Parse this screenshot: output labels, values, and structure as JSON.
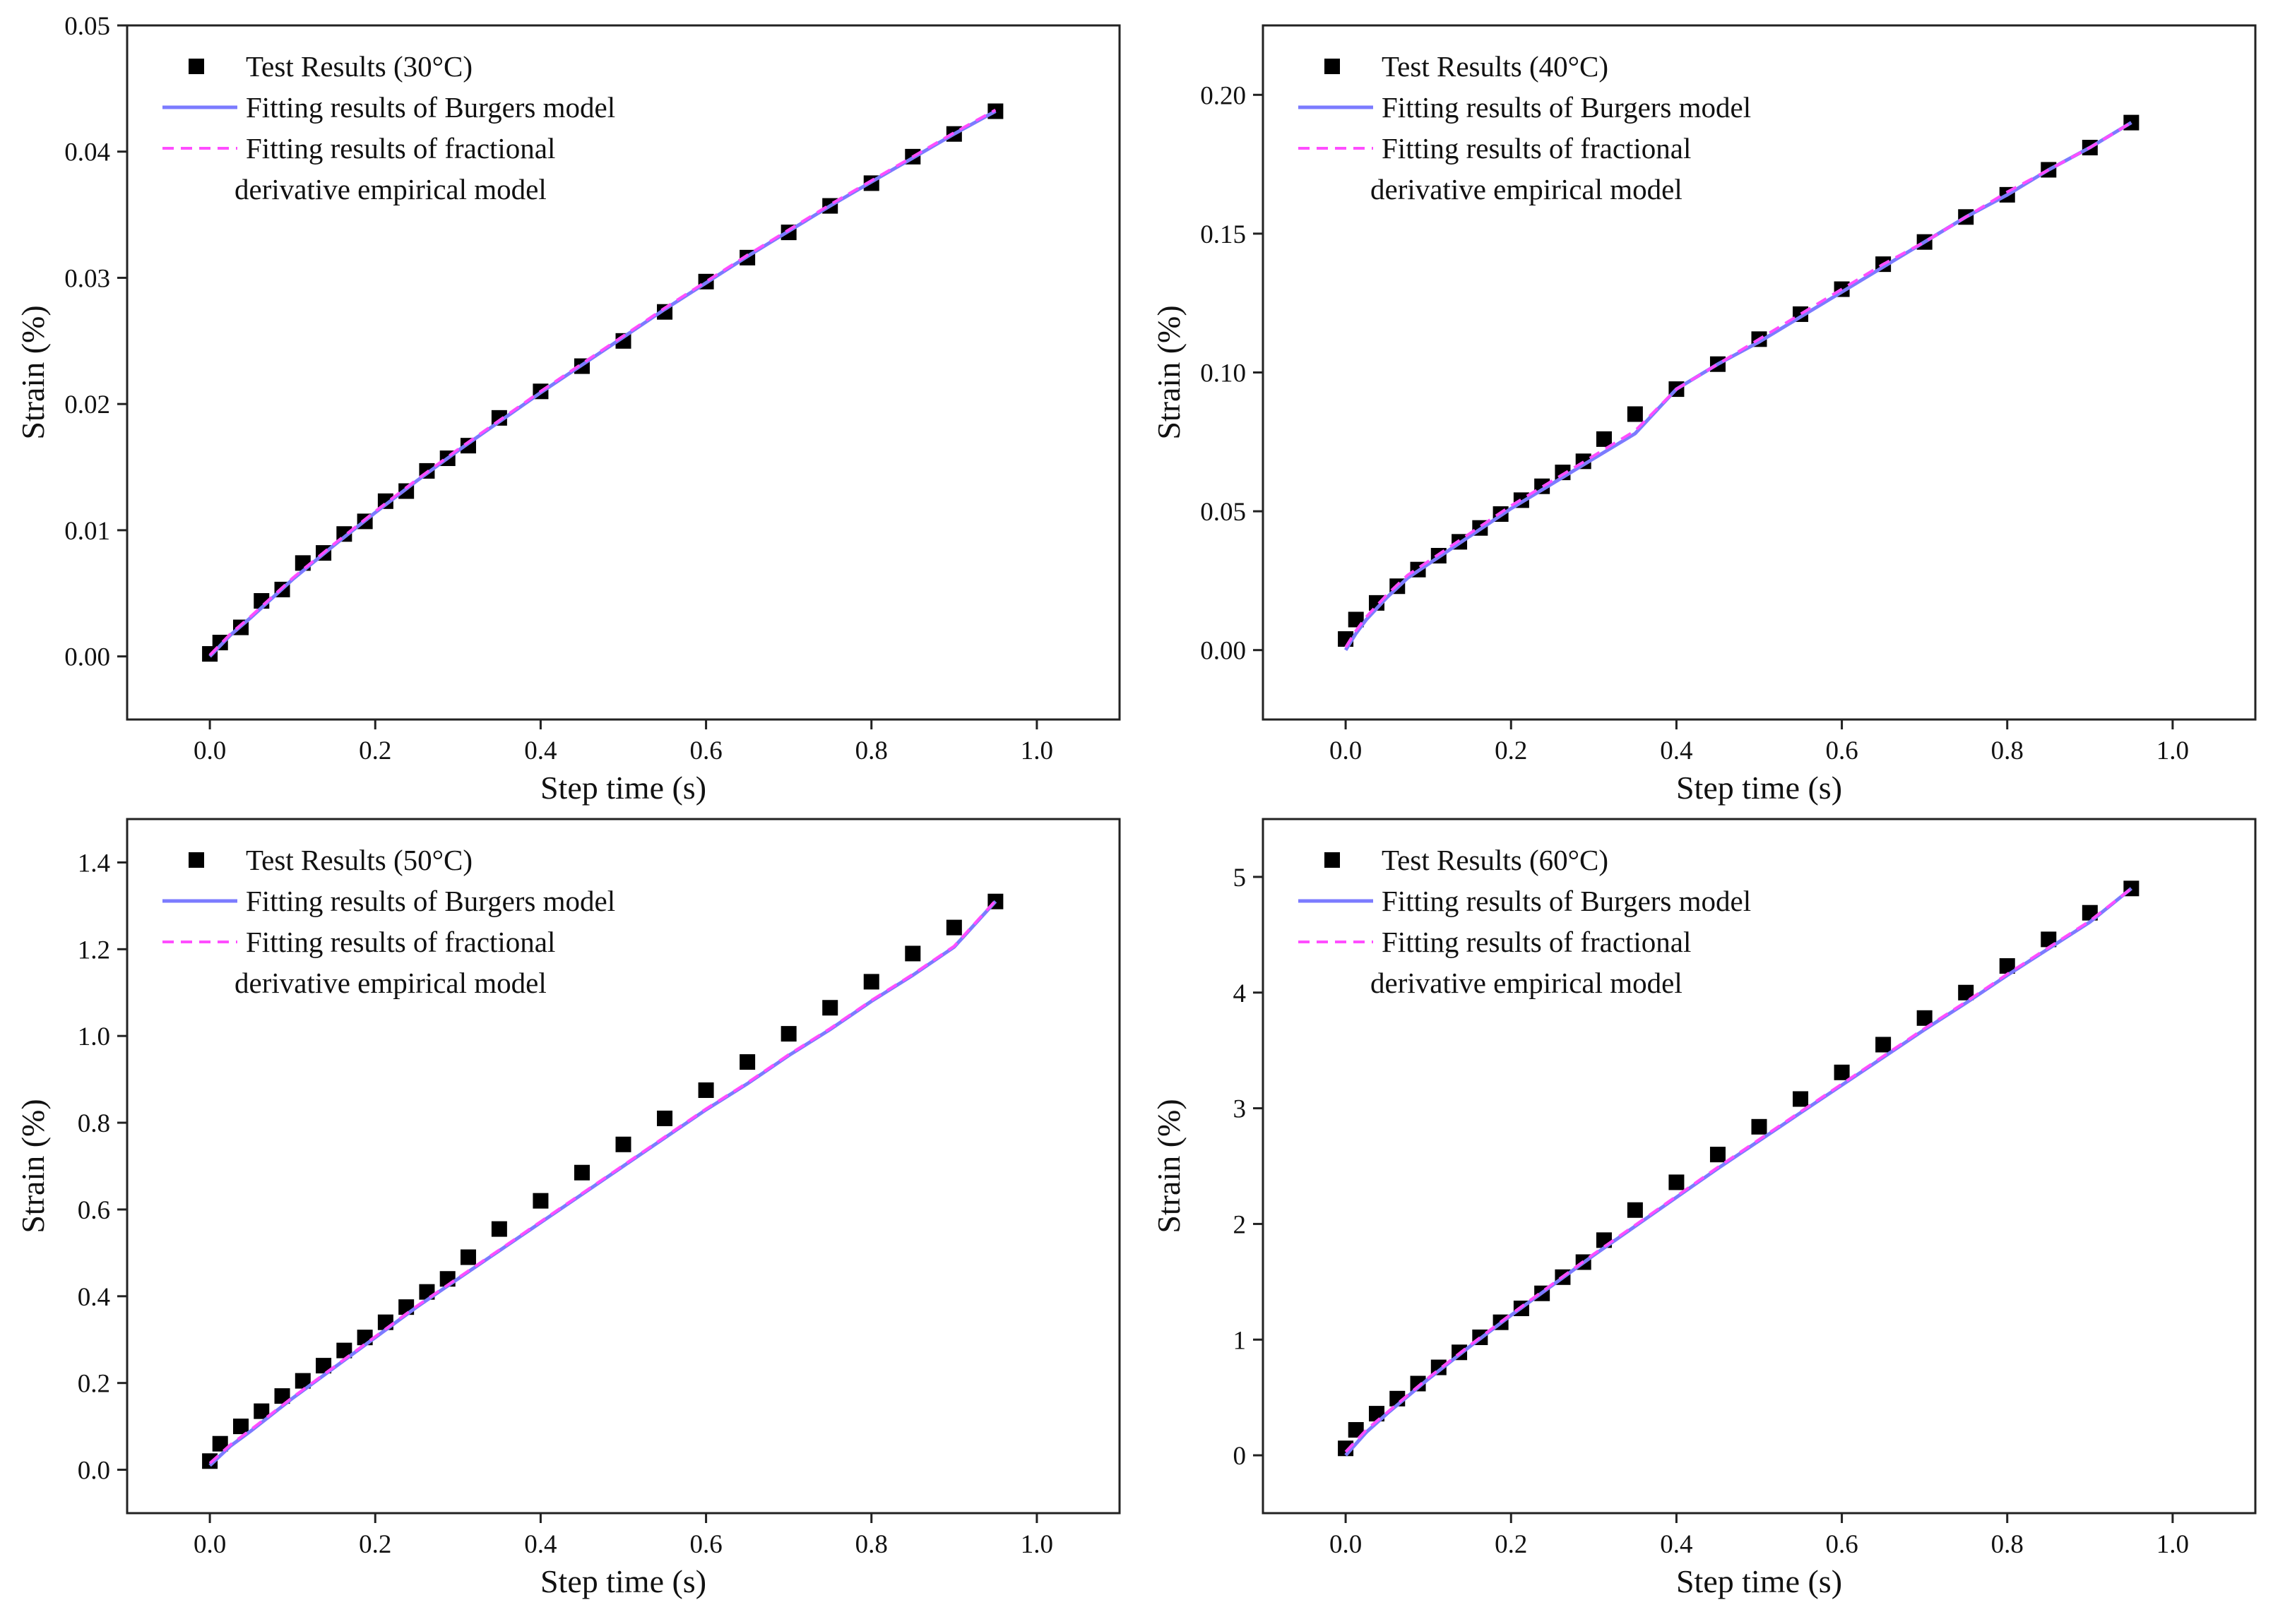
{
  "chart_data": [
    {
      "type": "scatter+line",
      "xlabel": "Step time (s)",
      "ylabel": "Strain (%)",
      "xlim": [
        -0.1,
        1.1
      ],
      "ylim": [
        -0.005,
        0.05
      ],
      "xticks": [
        0.0,
        0.2,
        0.4,
        0.6,
        0.8,
        1.0
      ],
      "xtick_labels": [
        "0.0",
        "0.2",
        "0.4",
        "0.6",
        "0.8",
        "1.0"
      ],
      "yticks": [
        0.0,
        0.01,
        0.02,
        0.03,
        0.04,
        0.05
      ],
      "ytick_labels": [
        "0.00",
        "0.01",
        "0.02",
        "0.03",
        "0.04",
        "0.05"
      ],
      "legend": {
        "position": "top-left",
        "test_label": "Test Results (30°C)",
        "burgers_label": "Fitting results of Burgers model",
        "fde_label_line1": "Fitting results of fractional",
        "fde_label_line2": "derivative empirical model"
      },
      "series": [
        {
          "name": "Test Results (30°C)",
          "kind": "markers",
          "x": [
            0.0,
            0.0125,
            0.0375,
            0.0625,
            0.0875,
            0.1125,
            0.1375,
            0.1625,
            0.1875,
            0.2125,
            0.2375,
            0.2625,
            0.2875,
            0.3125,
            0.35,
            0.4,
            0.45,
            0.5,
            0.55,
            0.6,
            0.65,
            0.7,
            0.75,
            0.8,
            0.85,
            0.9,
            0.95
          ],
          "y": [
            0.0002,
            0.0011,
            0.0023,
            0.0044,
            0.0053,
            0.0074,
            0.0082,
            0.0097,
            0.0107,
            0.0123,
            0.0131,
            0.0147,
            0.0157,
            0.0167,
            0.0189,
            0.021,
            0.023,
            0.025,
            0.0273,
            0.0297,
            0.0316,
            0.0336,
            0.0357,
            0.0375,
            0.0396,
            0.0414,
            0.0432
          ]
        },
        {
          "name": "Fitting results of Burgers model",
          "kind": "line",
          "x": [
            0.0,
            0.025,
            0.05,
            0.1,
            0.15,
            0.2,
            0.25,
            0.3,
            0.35,
            0.4,
            0.45,
            0.5,
            0.55,
            0.6,
            0.65,
            0.7,
            0.75,
            0.8,
            0.85,
            0.9,
            0.95
          ],
          "y": [
            0.0,
            0.0017,
            0.0031,
            0.0061,
            0.0088,
            0.0114,
            0.0139,
            0.0163,
            0.0186,
            0.0209,
            0.0231,
            0.0253,
            0.0275,
            0.0296,
            0.0317,
            0.0337,
            0.0357,
            0.0376,
            0.0395,
            0.0414,
            0.0432
          ]
        },
        {
          "name": "Fitting results of fractional derivative empirical model",
          "kind": "dashed-line",
          "x": [
            0.0,
            0.025,
            0.05,
            0.1,
            0.15,
            0.2,
            0.25,
            0.3,
            0.35,
            0.4,
            0.45,
            0.5,
            0.55,
            0.6,
            0.65,
            0.7,
            0.75,
            0.8,
            0.85,
            0.9,
            0.95
          ],
          "y": [
            0.0001,
            0.0018,
            0.0032,
            0.0062,
            0.0089,
            0.0115,
            0.014,
            0.0164,
            0.0187,
            0.021,
            0.0232,
            0.0254,
            0.0276,
            0.0297,
            0.0318,
            0.0338,
            0.0358,
            0.0377,
            0.0396,
            0.0415,
            0.0433
          ]
        }
      ]
    },
    {
      "type": "scatter+line",
      "xlabel": "Step time (s)",
      "ylabel": "Strain (%)",
      "xlim": [
        -0.1,
        1.1
      ],
      "ylim": [
        -0.025,
        0.225
      ],
      "xticks": [
        0.0,
        0.2,
        0.4,
        0.6,
        0.8,
        1.0
      ],
      "xtick_labels": [
        "0.0",
        "0.2",
        "0.4",
        "0.6",
        "0.8",
        "1.0"
      ],
      "yticks": [
        0.0,
        0.05,
        0.1,
        0.15,
        0.2
      ],
      "ytick_labels": [
        "0.00",
        "0.05",
        "0.10",
        "0.15",
        "0.20"
      ],
      "legend": {
        "position": "top-left",
        "test_label": "Test Results (40°C)",
        "burgers_label": "Fitting results of Burgers model",
        "fde_label_line1": "Fitting results of fractional",
        "fde_label_line2": "derivative empirical model"
      },
      "series": [
        {
          "name": "Test Results (40°C)",
          "kind": "markers",
          "x": [
            0.0,
            0.0125,
            0.0375,
            0.0625,
            0.0875,
            0.1125,
            0.1375,
            0.1625,
            0.1875,
            0.2125,
            0.2375,
            0.2625,
            0.2875,
            0.3125,
            0.35,
            0.4,
            0.45,
            0.5,
            0.55,
            0.6,
            0.65,
            0.7,
            0.75,
            0.8,
            0.85,
            0.9,
            0.95
          ],
          "y": [
            0.004,
            0.011,
            0.017,
            0.023,
            0.029,
            0.034,
            0.039,
            0.044,
            0.049,
            0.054,
            0.059,
            0.064,
            0.068,
            0.076,
            0.085,
            0.094,
            0.103,
            0.112,
            0.121,
            0.13,
            0.139,
            0.147,
            0.156,
            0.164,
            0.173,
            0.181,
            0.19
          ]
        },
        {
          "name": "Fitting results of Burgers model",
          "kind": "line",
          "x": [
            0.0,
            0.0125,
            0.025,
            0.05,
            0.075,
            0.1,
            0.15,
            0.2,
            0.25,
            0.3,
            0.35,
            0.4,
            0.45,
            0.5,
            0.55,
            0.6,
            0.65,
            0.7,
            0.75,
            0.8,
            0.85,
            0.9,
            0.95
          ],
          "y": [
            0.0,
            0.006,
            0.011,
            0.019,
            0.026,
            0.031,
            0.041,
            0.051,
            0.06,
            0.069,
            0.078,
            0.094,
            0.103,
            0.111,
            0.12,
            0.129,
            0.138,
            0.147,
            0.156,
            0.164,
            0.173,
            0.181,
            0.19
          ]
        },
        {
          "name": "Fitting results of fractional derivative empirical model",
          "kind": "dashed-line",
          "x": [
            0.0,
            0.0125,
            0.025,
            0.05,
            0.075,
            0.1,
            0.15,
            0.2,
            0.25,
            0.3,
            0.35,
            0.4,
            0.45,
            0.5,
            0.55,
            0.6,
            0.65,
            0.7,
            0.75,
            0.8,
            0.85,
            0.9,
            0.95
          ],
          "y": [
            0.001,
            0.007,
            0.012,
            0.02,
            0.027,
            0.032,
            0.042,
            0.052,
            0.061,
            0.07,
            0.079,
            0.094,
            0.103,
            0.112,
            0.121,
            0.13,
            0.139,
            0.147,
            0.156,
            0.165,
            0.173,
            0.181,
            0.19
          ]
        }
      ]
    },
    {
      "type": "scatter+line",
      "xlabel": "Step time (s)",
      "ylabel": "Strain (%)",
      "xlim": [
        -0.1,
        1.1
      ],
      "ylim": [
        -0.1,
        1.5
      ],
      "xticks": [
        0.0,
        0.2,
        0.4,
        0.6,
        0.8,
        1.0
      ],
      "xtick_labels": [
        "0.0",
        "0.2",
        "0.4",
        "0.6",
        "0.8",
        "1.0"
      ],
      "yticks": [
        0.0,
        0.2,
        0.4,
        0.6,
        0.8,
        1.0,
        1.2,
        1.4
      ],
      "ytick_labels": [
        "0.0",
        "0.2",
        "0.4",
        "0.6",
        "0.8",
        "1.0",
        "1.2",
        "1.4"
      ],
      "legend": {
        "position": "top-left",
        "test_label": "Test Results (50°C)",
        "burgers_label": "Fitting results of Burgers model",
        "fde_label_line1": "Fitting results of fractional",
        "fde_label_line2": "derivative empirical model"
      },
      "series": [
        {
          "name": "Test Results (50°C)",
          "kind": "markers",
          "x": [
            0.0,
            0.0125,
            0.0375,
            0.0625,
            0.0875,
            0.1125,
            0.1375,
            0.1625,
            0.1875,
            0.2125,
            0.2375,
            0.2625,
            0.2875,
            0.3125,
            0.35,
            0.4,
            0.45,
            0.5,
            0.55,
            0.6,
            0.65,
            0.7,
            0.75,
            0.8,
            0.85,
            0.9,
            0.95
          ],
          "y": [
            0.02,
            0.06,
            0.1,
            0.135,
            0.17,
            0.205,
            0.24,
            0.275,
            0.305,
            0.34,
            0.375,
            0.41,
            0.44,
            0.49,
            0.555,
            0.62,
            0.685,
            0.75,
            0.81,
            0.875,
            0.94,
            1.005,
            1.065,
            1.125,
            1.19,
            1.25,
            1.31
          ]
        },
        {
          "name": "Fitting results of Burgers model",
          "kind": "line",
          "x": [
            0.0,
            0.025,
            0.05,
            0.1,
            0.15,
            0.2,
            0.25,
            0.3,
            0.35,
            0.4,
            0.45,
            0.5,
            0.55,
            0.6,
            0.65,
            0.7,
            0.75,
            0.8,
            0.85,
            0.9,
            0.95
          ],
          "y": [
            0.01,
            0.055,
            0.09,
            0.165,
            0.235,
            0.305,
            0.375,
            0.44,
            0.505,
            0.57,
            0.635,
            0.7,
            0.765,
            0.83,
            0.89,
            0.955,
            1.015,
            1.08,
            1.14,
            1.205,
            1.31
          ]
        },
        {
          "name": "Fitting results of fractional derivative empirical model",
          "kind": "dashed-line",
          "x": [
            0.0,
            0.025,
            0.05,
            0.1,
            0.15,
            0.2,
            0.25,
            0.3,
            0.35,
            0.4,
            0.45,
            0.5,
            0.55,
            0.6,
            0.65,
            0.7,
            0.75,
            0.8,
            0.85,
            0.9,
            0.95
          ],
          "y": [
            0.015,
            0.058,
            0.093,
            0.167,
            0.237,
            0.307,
            0.377,
            0.442,
            0.507,
            0.572,
            0.637,
            0.702,
            0.767,
            0.832,
            0.892,
            0.957,
            1.017,
            1.082,
            1.142,
            1.207,
            1.312
          ]
        }
      ]
    },
    {
      "type": "scatter+line",
      "xlabel": "Step time (s)",
      "ylabel": "Strain (%)",
      "xlim": [
        -0.1,
        1.1
      ],
      "ylim": [
        -0.5,
        5.5
      ],
      "xticks": [
        0.0,
        0.2,
        0.4,
        0.6,
        0.8,
        1.0
      ],
      "xtick_labels": [
        "0.0",
        "0.2",
        "0.4",
        "0.6",
        "0.8",
        "1.0"
      ],
      "yticks": [
        0,
        1,
        2,
        3,
        4,
        5
      ],
      "ytick_labels": [
        "0",
        "1",
        "2",
        "3",
        "4",
        "5"
      ],
      "legend": {
        "position": "top-left",
        "test_label": "Test Results (60°C)",
        "burgers_label": "Fitting results of Burgers model",
        "fde_label_line1": "Fitting results of fractional",
        "fde_label_line2": "derivative empirical model"
      },
      "series": [
        {
          "name": "Test Results (60°C)",
          "kind": "markers",
          "x": [
            0.0,
            0.0125,
            0.0375,
            0.0625,
            0.0875,
            0.1125,
            0.1375,
            0.1625,
            0.1875,
            0.2125,
            0.2375,
            0.2625,
            0.2875,
            0.3125,
            0.35,
            0.4,
            0.45,
            0.5,
            0.55,
            0.6,
            0.65,
            0.7,
            0.75,
            0.8,
            0.85,
            0.9,
            0.95
          ],
          "y": [
            0.06,
            0.22,
            0.36,
            0.49,
            0.62,
            0.76,
            0.89,
            1.02,
            1.15,
            1.27,
            1.4,
            1.54,
            1.67,
            1.86,
            2.12,
            2.36,
            2.6,
            2.84,
            3.08,
            3.31,
            3.55,
            3.78,
            4.0,
            4.23,
            4.46,
            4.69,
            4.9
          ]
        },
        {
          "name": "Fitting results of Burgers model",
          "kind": "line",
          "x": [
            0.0,
            0.025,
            0.05,
            0.1,
            0.15,
            0.2,
            0.25,
            0.3,
            0.35,
            0.4,
            0.45,
            0.5,
            0.55,
            0.6,
            0.65,
            0.7,
            0.75,
            0.8,
            0.85,
            0.9,
            0.95
          ],
          "y": [
            0.0,
            0.2,
            0.36,
            0.66,
            0.94,
            1.21,
            1.47,
            1.73,
            1.98,
            2.23,
            2.48,
            2.72,
            2.96,
            3.2,
            3.44,
            3.68,
            3.91,
            4.15,
            4.38,
            4.61,
            4.9
          ]
        },
        {
          "name": "Fitting results of fractional derivative empirical model",
          "kind": "dashed-line",
          "x": [
            0.0,
            0.025,
            0.05,
            0.1,
            0.15,
            0.2,
            0.25,
            0.3,
            0.35,
            0.4,
            0.45,
            0.5,
            0.55,
            0.6,
            0.65,
            0.7,
            0.75,
            0.8,
            0.85,
            0.9,
            0.95
          ],
          "y": [
            0.03,
            0.22,
            0.37,
            0.67,
            0.95,
            1.22,
            1.48,
            1.74,
            1.99,
            2.24,
            2.49,
            2.73,
            2.97,
            3.21,
            3.45,
            3.69,
            3.92,
            4.16,
            4.39,
            4.62,
            4.9
          ]
        }
      ]
    }
  ]
}
